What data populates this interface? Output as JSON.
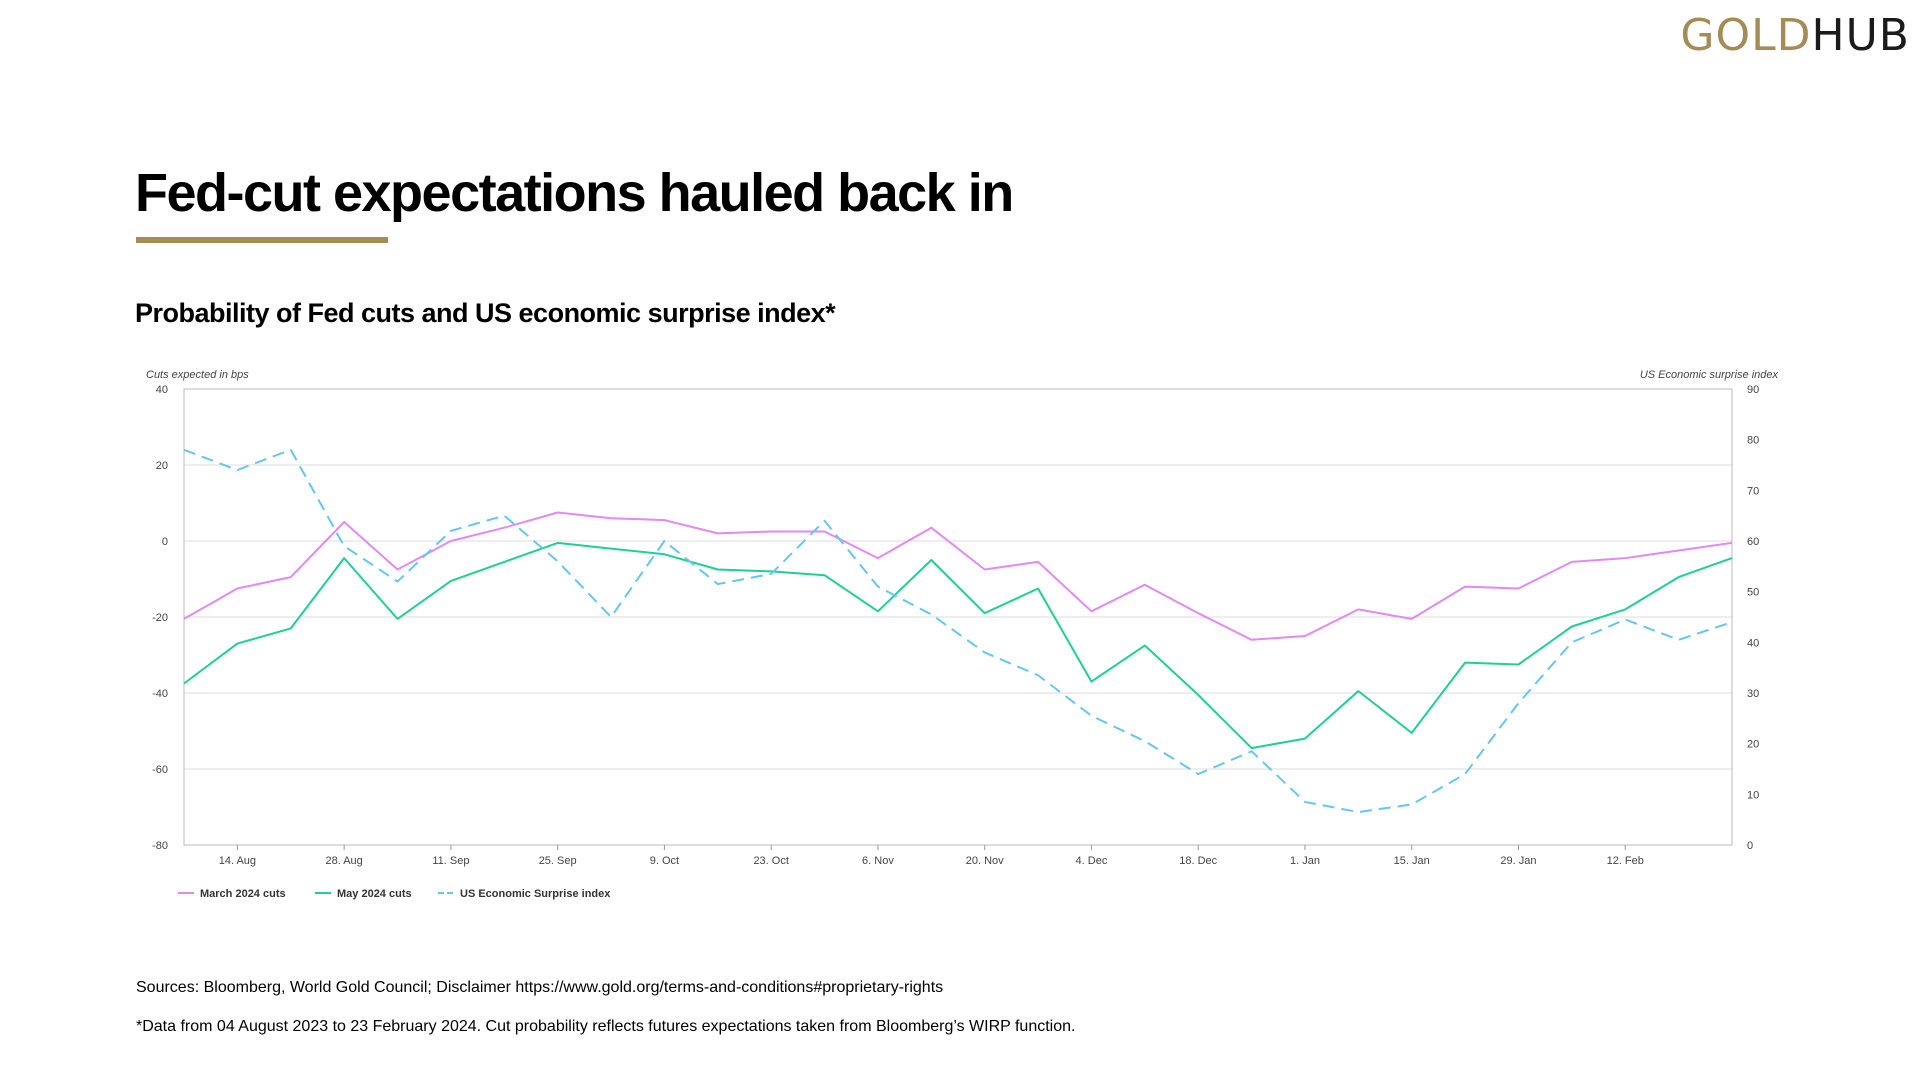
{
  "brand": {
    "gold": "GOLD",
    "hub": "HUB"
  },
  "colors": {
    "accent": "#a58b55",
    "march": "#e18af0",
    "may": "#1fcf96",
    "surprise": "#66c6ee"
  },
  "page": {
    "title": "Fed-cut expectations hauled back in",
    "subtitle": "Probability of Fed cuts and US economic surprise index*",
    "source": "Sources: Bloomberg, World Gold Council; Disclaimer https://www.gold.org/terms-and-conditions#proprietary-rights",
    "note": "*Data from 04 August 2023 to 23 February 2024. Cut probability reflects futures expectations taken from Bloomberg’s WIRP function."
  },
  "chart_data": {
    "type": "line",
    "left_axis_label": "Cuts expected in bps",
    "right_axis_label": "US Economic surprise index",
    "left_ylim": [
      -80,
      40
    ],
    "left_ticks": [
      "40",
      "20",
      "0",
      "-20",
      "-40",
      "-60",
      "-80"
    ],
    "right_ylim": [
      0,
      90
    ],
    "right_ticks": [
      "90",
      "80",
      "70",
      "60",
      "50",
      "40",
      "30",
      "20",
      "10",
      "0"
    ],
    "x_tick_labels": [
      "14. Aug",
      "28. Aug",
      "11. Sep",
      "25. Sep",
      "9. Oct",
      "23. Oct",
      "6. Nov",
      "20. Nov",
      "4. Dec",
      "18. Dec",
      "1. Jan",
      "15. Jan",
      "29. Jan",
      "12. Feb"
    ],
    "x_dates": [
      "4 Aug",
      "11 Aug",
      "18 Aug",
      "25 Aug",
      "1 Sep",
      "8 Sep",
      "15 Sep",
      "22 Sep",
      "29 Sep",
      "6 Oct",
      "13 Oct",
      "20 Oct",
      "27 Oct",
      "3 Nov",
      "10 Nov",
      "17 Nov",
      "24 Nov",
      "1 Dec",
      "8 Dec",
      "15 Dec",
      "22 Dec",
      "29 Dec",
      "5 Jan",
      "12 Jan",
      "19 Jan",
      "26 Jan",
      "2 Feb",
      "9 Feb",
      "16 Feb",
      "23 Feb"
    ],
    "gridlines": true,
    "legend_position": "bottom-left",
    "series": [
      {
        "name": "March 2024 cuts",
        "axis": "left",
        "style": "solid",
        "values": [
          -20.5,
          -12.5,
          -9.5,
          5,
          -7.5,
          0,
          3.5,
          7.5,
          6,
          5.5,
          2,
          2.5,
          2.5,
          -4.5,
          3.5,
          -7.5,
          -5.5,
          -18.5,
          -11.5,
          -19,
          -26,
          -25,
          -18,
          -20.5,
          -12,
          -12.5,
          -5.5,
          -4.5,
          -2.5,
          -0.5
        ]
      },
      {
        "name": "May 2024 cuts",
        "axis": "left",
        "style": "solid",
        "values": [
          -37.5,
          -27,
          -23,
          -4.5,
          -20.5,
          -10.5,
          -5.5,
          -0.5,
          -2,
          -3.5,
          -7.5,
          -8,
          -9,
          -18.5,
          -5,
          -19,
          -12.5,
          -37,
          -27.5,
          -40.5,
          -54.5,
          -52,
          -39.5,
          -50.5,
          -32,
          -32.5,
          -22.5,
          -18,
          -9.5,
          -4.5
        ]
      },
      {
        "name": "US Economic Surprise index",
        "axis": "right",
        "style": "dashed",
        "values": [
          78,
          74,
          78,
          59,
          52,
          62,
          65,
          56,
          45,
          60,
          51.5,
          53.5,
          64,
          51,
          45.5,
          38,
          33.5,
          25.5,
          20.5,
          14,
          18.5,
          8.5,
          6.5,
          8,
          14,
          28,
          40,
          44.5,
          40.5,
          44
        ]
      }
    ]
  }
}
